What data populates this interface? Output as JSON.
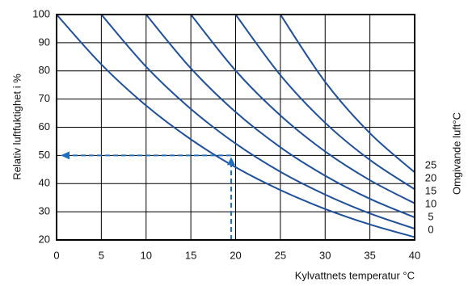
{
  "chart_data": {
    "type": "line",
    "x_label": "Kylvattnets temperatur °C",
    "y_label": "Relativ luftfuktighet i %",
    "legend_title": "Omgivande luft°C",
    "x": [
      0,
      5,
      10,
      15,
      20,
      25,
      30,
      35,
      40
    ],
    "series": [
      {
        "name": "0",
        "color": "#1d4f9a",
        "values": [
          100,
          82.3,
          67.7,
          55.7,
          45.8,
          37.7,
          31.0,
          25.5,
          21
        ]
      },
      {
        "name": "5",
        "color": "#1d4f9a",
        "values": [
          null,
          100,
          81.5,
          66.5,
          54.2,
          44.2,
          36.1,
          29.4,
          24
        ]
      },
      {
        "name": "10",
        "color": "#1d4f9a",
        "values": [
          null,
          null,
          100,
          80.9,
          65.4,
          52.9,
          42.8,
          34.6,
          28
        ]
      },
      {
        "name": "15",
        "color": "#1d4f9a",
        "values": [
          null,
          null,
          null,
          100,
          80.1,
          64.2,
          51.4,
          41.2,
          33
        ]
      },
      {
        "name": "20",
        "color": "#1d4f9a",
        "values": [
          null,
          null,
          null,
          null,
          100,
          78.5,
          61.6,
          48.4,
          38
        ]
      },
      {
        "name": "25",
        "color": "#1d4f9a",
        "values": [
          null,
          null,
          null,
          null,
          null,
          100,
          76.1,
          57.9,
          44
        ]
      }
    ],
    "example_point": {
      "x": 19.5,
      "y": 50,
      "color": "#1f6fc0"
    },
    "xlim": [
      0,
      40
    ],
    "xticks": [
      0,
      5,
      10,
      15,
      20,
      25,
      30,
      35,
      40
    ],
    "ylim": [
      20,
      100
    ],
    "yticks": [
      20,
      30,
      40,
      50,
      60,
      70,
      80,
      90,
      100
    ],
    "grid": true
  }
}
